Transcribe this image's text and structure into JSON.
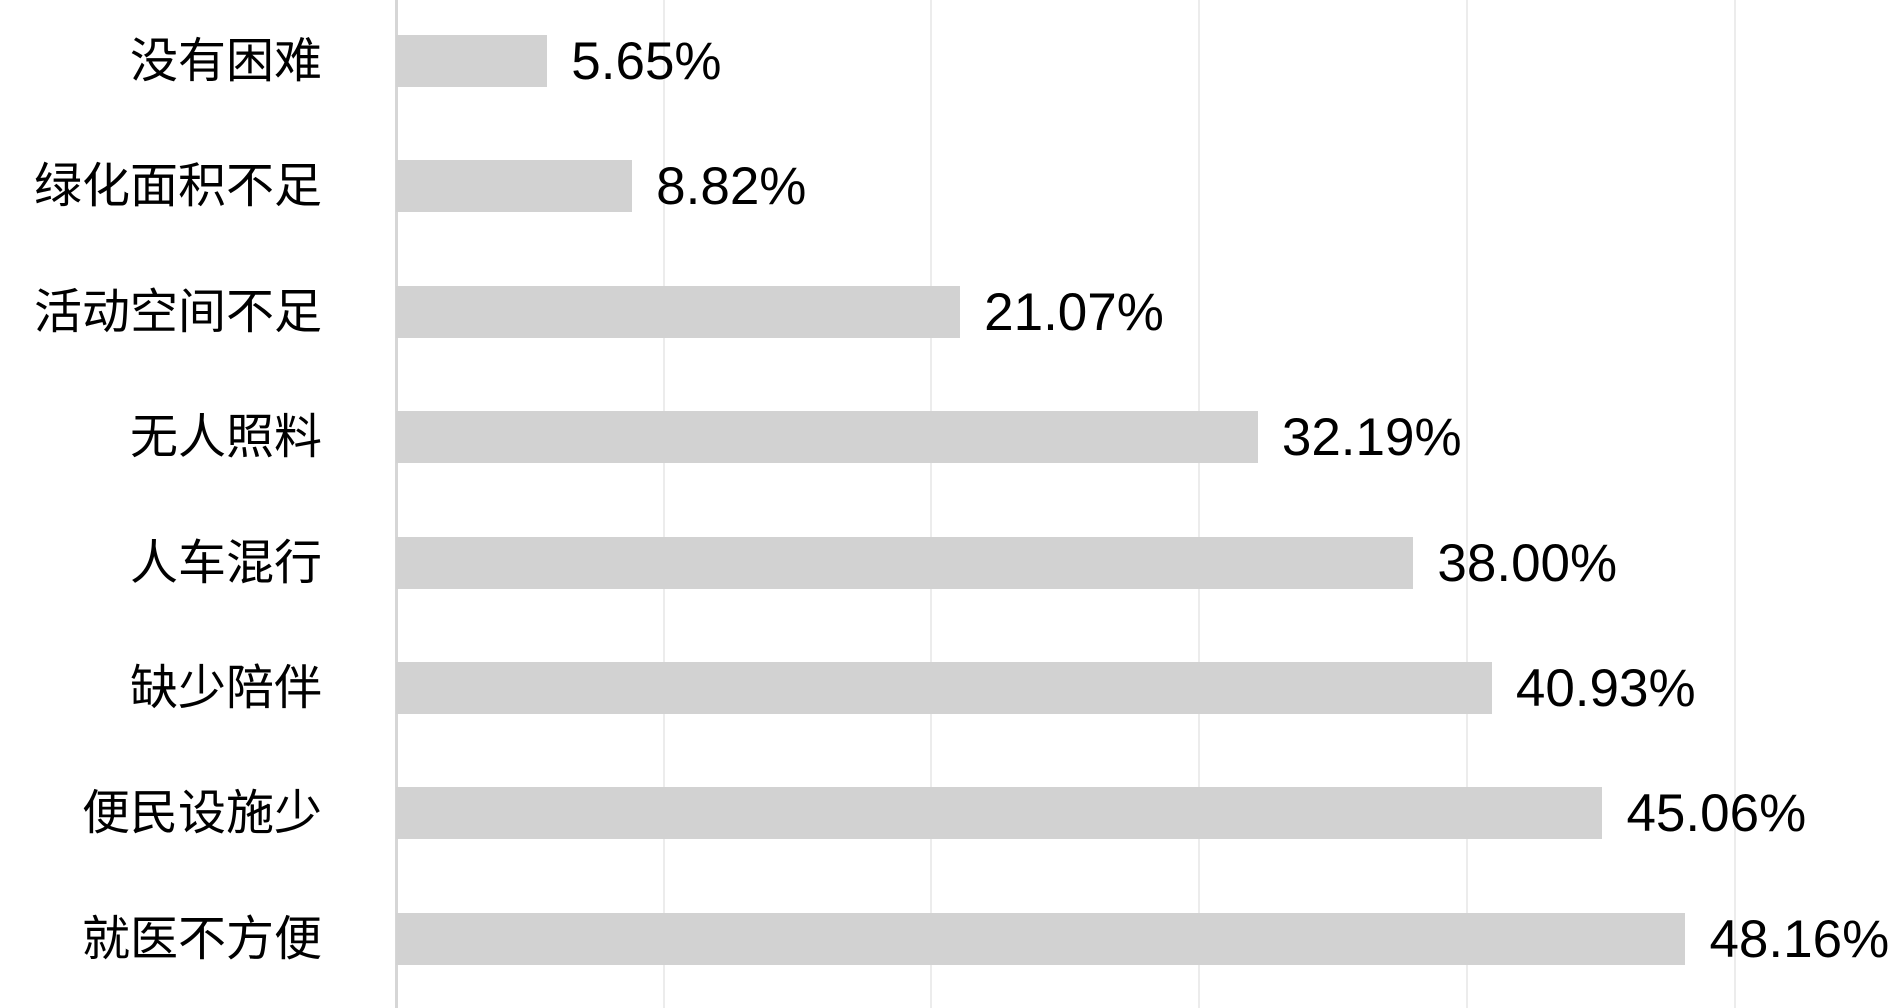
{
  "chart_data": {
    "type": "bar",
    "orientation": "horizontal",
    "title": "",
    "xlabel": "",
    "ylabel": "",
    "categories": [
      "没有困难",
      "绿化面积不足",
      "活动空间不足",
      "无人照料",
      "人车混行",
      "缺少陪伴",
      "便民设施少",
      "就医不方便"
    ],
    "values": [
      5.65,
      8.82,
      21.07,
      32.19,
      38.0,
      40.93,
      45.06,
      48.16
    ],
    "value_labels": [
      "5.65%",
      "8.82%",
      "21.07%",
      "32.19%",
      "38.00%",
      "40.93%",
      "45.06%",
      "48.16%"
    ],
    "xlim": [
      0,
      55.8
    ],
    "gridline_step": 10,
    "grid": "vertical-only",
    "tick_labels_visible": false,
    "legend": "none",
    "bar_color": "#d2d2d2",
    "gridline_color": "#ececec",
    "axis_line_color": "#d6d6d6",
    "label_color": "#000000",
    "background_color": "#ffffff"
  }
}
